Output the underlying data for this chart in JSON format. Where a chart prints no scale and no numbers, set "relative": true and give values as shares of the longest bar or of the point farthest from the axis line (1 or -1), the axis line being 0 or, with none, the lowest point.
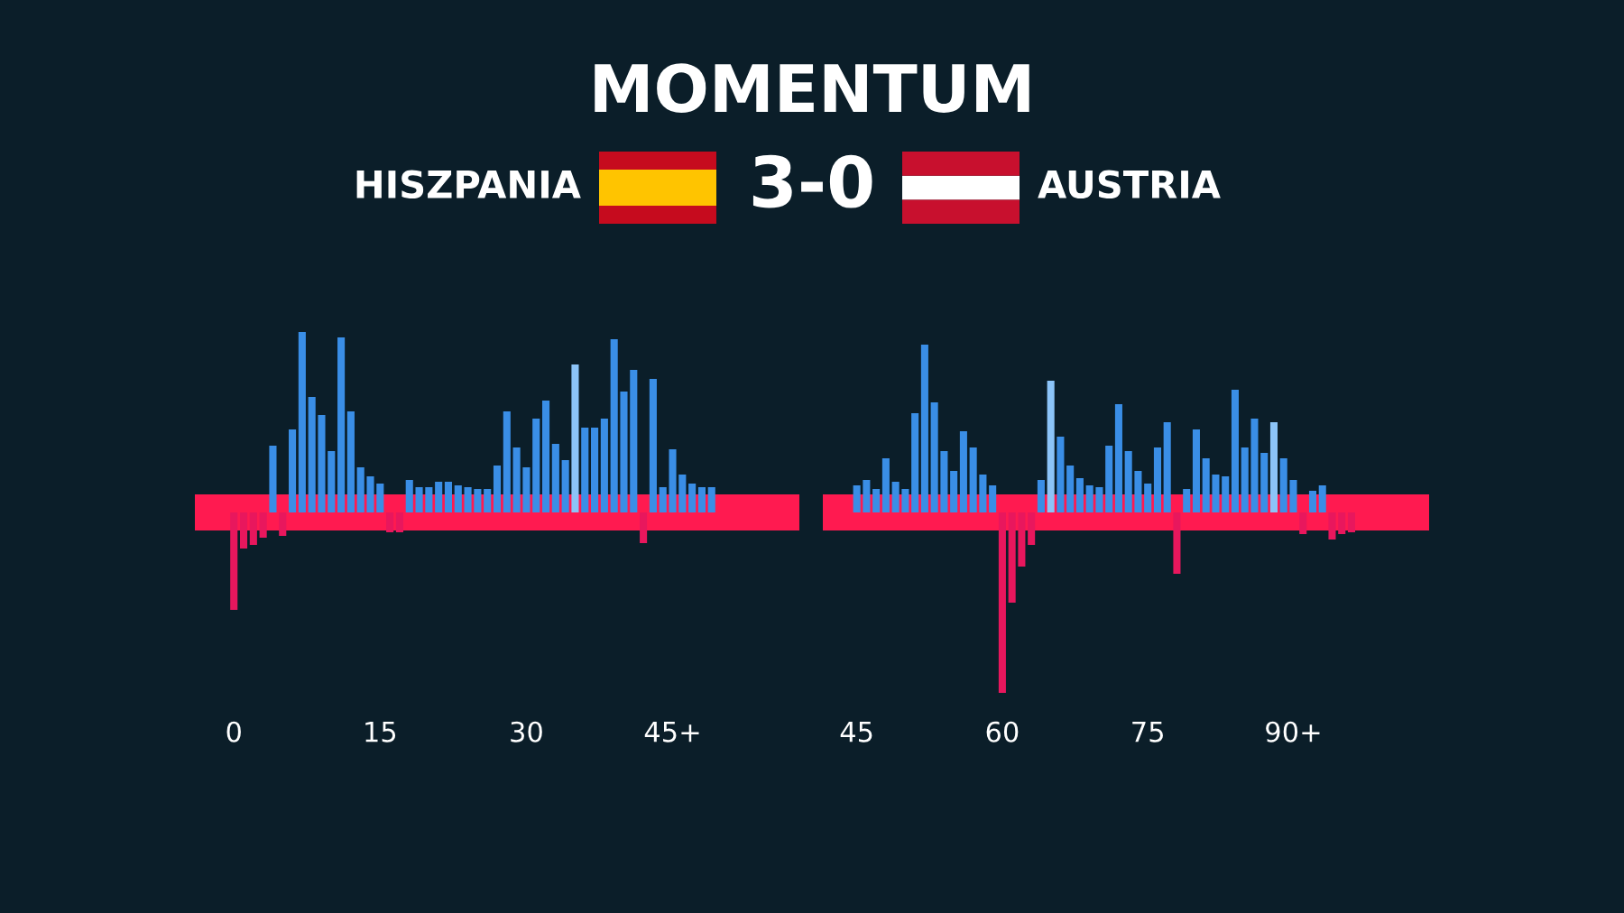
{
  "chart_data": [
    {
      "type": "bar",
      "title": "MOMENTUM",
      "subtitle": "HISZPANIA 3-0 AUSTRIA",
      "relative": true,
      "xlim": [
        -4,
        58
      ],
      "xticks": [
        0,
        15,
        30,
        {
          "value": 45,
          "label": "45+"
        }
      ],
      "bands": [
        {
          "axis": "y",
          "from": -0.1,
          "to": 0.1,
          "color": "#ff1a50"
        }
      ],
      "x": [
        0,
        1,
        2,
        3,
        4,
        5,
        6,
        7,
        8,
        9,
        10,
        11,
        12,
        13,
        14,
        15,
        16,
        17,
        18,
        19,
        20,
        21,
        22,
        23,
        24,
        25,
        26,
        27,
        28,
        29,
        30,
        31,
        32,
        33,
        34,
        35,
        36,
        37,
        38,
        39,
        40,
        41,
        42,
        43,
        44,
        45,
        46,
        47,
        48,
        49
      ],
      "series": [
        {
          "color": "#3a8ee6",
          "colors": [
            "#3a8ee6",
            "#3a8ee6",
            "#3a8ee6",
            "#3a8ee6",
            "#3a8ee6",
            "#3a8ee6",
            "#3a8ee6",
            "#3a8ee6",
            "#3a8ee6",
            "#3a8ee6",
            "#3a8ee6",
            "#3a8ee6",
            "#3a8ee6",
            "#3a8ee6",
            "#3a8ee6",
            "#3a8ee6",
            "#3a8ee6",
            "#3a8ee6",
            "#3a8ee6",
            "#3a8ee6",
            "#3a8ee6",
            "#3a8ee6",
            "#3a8ee6",
            "#3a8ee6",
            "#3a8ee6",
            "#3a8ee6",
            "#3a8ee6",
            "#3a8ee6",
            "#3a8ee6",
            "#3a8ee6",
            "#3a8ee6",
            "#3a8ee6",
            "#3a8ee6",
            "#3a8ee6",
            "#3a8ee6",
            "#8cc4f8",
            "#3a8ee6",
            "#3a8ee6",
            "#3a8ee6",
            "#3a8ee6",
            "#3a8ee6",
            "#3a8ee6",
            "#3a8ee6",
            "#3a8ee6",
            "#3a8ee6",
            "#3a8ee6",
            "#3a8ee6",
            "#3a8ee6",
            "#3a8ee6",
            "#3a8ee6"
          ],
          "values": [
            null,
            null,
            null,
            null,
            0.37,
            null,
            0.46,
            1,
            0.64,
            0.54,
            0.34,
            0.97,
            0.56,
            0.25,
            0.2,
            0.16,
            null,
            null,
            0.18,
            0.14,
            0.14,
            0.17,
            0.17,
            0.15,
            0.14,
            0.13,
            0.13,
            0.26,
            0.56,
            0.36,
            0.25,
            0.52,
            0.62,
            0.38,
            0.29,
            0.82,
            0.47,
            0.47,
            0.52,
            0.96,
            0.67,
            0.79,
            null,
            0.74,
            0.14,
            0.35,
            0.21,
            0.16,
            0.14,
            0.14
          ]
        },
        {
          "color": "#e8175d",
          "values": [
            -0.54,
            -0.2,
            -0.18,
            -0.14,
            null,
            -0.13,
            null,
            null,
            null,
            null,
            null,
            null,
            null,
            null,
            null,
            null,
            -0.11,
            -0.11,
            null,
            null,
            null,
            null,
            null,
            null,
            null,
            null,
            null,
            null,
            null,
            null,
            null,
            null,
            null,
            null,
            null,
            null,
            null,
            null,
            null,
            null,
            null,
            null,
            -0.17,
            null,
            null,
            null,
            null,
            null,
            null,
            null
          ]
        }
      ]
    },
    {
      "type": "bar",
      "relative": true,
      "xlim": [
        41.5,
        104
      ],
      "xticks": [
        45,
        60,
        75,
        {
          "value": 90,
          "label": "90+"
        }
      ],
      "bands": [
        {
          "axis": "y",
          "from": -0.1,
          "to": 0.1,
          "color": "#ff1a50"
        }
      ],
      "x": [
        45,
        46,
        47,
        48,
        49,
        50,
        51,
        52,
        53,
        54,
        55,
        56,
        57,
        58,
        59,
        60,
        61,
        62,
        63,
        64,
        65,
        66,
        67,
        68,
        69,
        70,
        71,
        72,
        73,
        74,
        75,
        76,
        77,
        78,
        79,
        80,
        81,
        82,
        83,
        84,
        85,
        86,
        87,
        88,
        89,
        90,
        91,
        92,
        93,
        94,
        95,
        96
      ],
      "series": [
        {
          "color": "#3a8ee6",
          "colors": [
            "#3a8ee6",
            "#3a8ee6",
            "#3a8ee6",
            "#3a8ee6",
            "#3a8ee6",
            "#3a8ee6",
            "#3a8ee6",
            "#3a8ee6",
            "#3a8ee6",
            "#3a8ee6",
            "#3a8ee6",
            "#3a8ee6",
            "#3a8ee6",
            "#3a8ee6",
            "#3a8ee6",
            "#3a8ee6",
            "#3a8ee6",
            "#3a8ee6",
            "#3a8ee6",
            "#3a8ee6",
            "#8cc4f8",
            "#3a8ee6",
            "#3a8ee6",
            "#3a8ee6",
            "#3a8ee6",
            "#3a8ee6",
            "#3a8ee6",
            "#3a8ee6",
            "#3a8ee6",
            "#3a8ee6",
            "#3a8ee6",
            "#3a8ee6",
            "#3a8ee6",
            "#3a8ee6",
            "#3a8ee6",
            "#3a8ee6",
            "#3a8ee6",
            "#3a8ee6",
            "#3a8ee6",
            "#3a8ee6",
            "#3a8ee6",
            "#3a8ee6",
            "#3a8ee6",
            "#8cc4f8",
            "#3a8ee6",
            "#3a8ee6",
            "#3a8ee6",
            "#3a8ee6",
            "#3a8ee6",
            "#3a8ee6",
            "#3a8ee6",
            "#3a8ee6"
          ],
          "values": [
            0.15,
            0.18,
            0.13,
            0.3,
            0.17,
            0.13,
            0.55,
            0.93,
            0.61,
            0.34,
            0.23,
            0.45,
            0.36,
            0.21,
            0.15,
            null,
            null,
            null,
            null,
            0.18,
            0.73,
            0.42,
            0.26,
            0.19,
            0.15,
            0.14,
            0.37,
            0.6,
            0.34,
            0.23,
            0.16,
            0.36,
            0.5,
            null,
            0.13,
            0.46,
            0.3,
            0.21,
            0.2,
            0.68,
            0.36,
            0.52,
            0.33,
            0.5,
            0.3,
            0.18,
            null,
            0.12,
            0.15,
            null,
            null,
            null
          ]
        },
        {
          "color": "#e8175d",
          "values": [
            null,
            null,
            null,
            null,
            null,
            null,
            null,
            null,
            null,
            null,
            null,
            null,
            null,
            null,
            null,
            -1,
            -0.5,
            -0.3,
            -0.18,
            null,
            null,
            null,
            null,
            null,
            null,
            null,
            null,
            null,
            null,
            null,
            null,
            null,
            null,
            -0.34,
            null,
            null,
            null,
            null,
            null,
            null,
            null,
            null,
            null,
            null,
            null,
            null,
            -0.12,
            null,
            null,
            -0.15,
            -0.12,
            -0.11
          ]
        }
      ]
    }
  ]
}
